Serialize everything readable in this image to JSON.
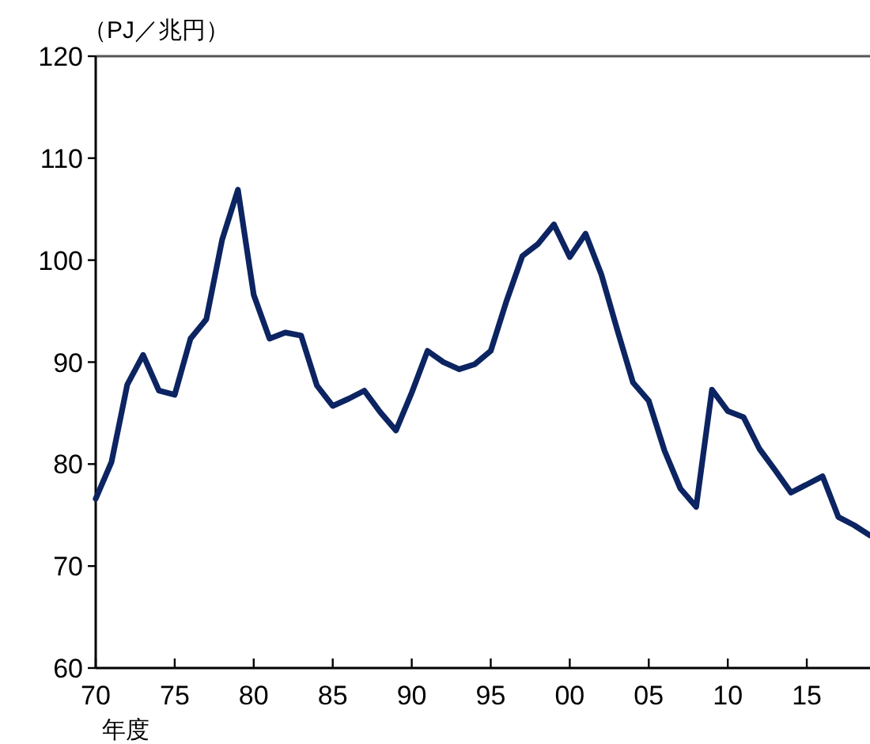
{
  "chart_data": {
    "type": "line",
    "ylabel": "（PJ／兆円）",
    "xlabel": "年度",
    "x": [
      1970,
      1971,
      1972,
      1973,
      1974,
      1975,
      1976,
      1977,
      1978,
      1979,
      1980,
      1981,
      1982,
      1983,
      1984,
      1985,
      1986,
      1987,
      1988,
      1989,
      1990,
      1991,
      1992,
      1993,
      1994,
      1995,
      1996,
      1997,
      1998,
      1999,
      2000,
      2001,
      2002,
      2003,
      2004,
      2005,
      2006,
      2007,
      2008,
      2009,
      2010,
      2011,
      2012,
      2013,
      2014,
      2015,
      2016,
      2017,
      2018,
      2019
    ],
    "series": [
      {
        "color": "#0c2461",
        "values": [
          76.6,
          80.2,
          87.8,
          90.7,
          87.2,
          86.8,
          92.3,
          94.2,
          102,
          106.9,
          96.6,
          92.3,
          92.9,
          92.6,
          87.7,
          85.7,
          86.4,
          87.2,
          85.1,
          83.3,
          87.0,
          91.1,
          90.0,
          89.3,
          89.8,
          91.1,
          96.0,
          100.4,
          101.6,
          103.5,
          100.3,
          102.6,
          98.6,
          93.2,
          88.0,
          86.2,
          81.3,
          77.6,
          75.8,
          87.3,
          85.2,
          84.6,
          81.5,
          79.4,
          77.2,
          78.0,
          78.8,
          74.8,
          74.0,
          73.0
        ]
      }
    ],
    "xlim": [
      1970,
      2019
    ],
    "ylim": [
      60,
      120
    ],
    "xticks": [
      {
        "value": 1970,
        "label": "70"
      },
      {
        "value": 1975,
        "label": "75"
      },
      {
        "value": 1980,
        "label": "80"
      },
      {
        "value": 1985,
        "label": "85"
      },
      {
        "value": 1990,
        "label": "90"
      },
      {
        "value": 1995,
        "label": "95"
      },
      {
        "value": 2000,
        "label": "00"
      },
      {
        "value": 2005,
        "label": "05"
      },
      {
        "value": 2010,
        "label": "10"
      },
      {
        "value": 2015,
        "label": "15"
      }
    ],
    "yticks": [
      60,
      70,
      80,
      90,
      100,
      110,
      120
    ],
    "grid": false,
    "marker": "none",
    "line_style": "solid"
  }
}
